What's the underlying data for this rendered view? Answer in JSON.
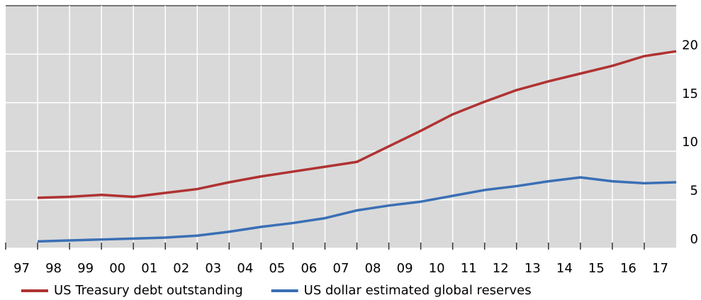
{
  "chart_data": {
    "type": "line",
    "categories": [
      "97",
      "98",
      "99",
      "00",
      "01",
      "02",
      "03",
      "04",
      "05",
      "06",
      "07",
      "08",
      "09",
      "10",
      "11",
      "12",
      "13",
      "14",
      "15",
      "16",
      "17"
    ],
    "series": [
      {
        "name": "US Treasury debt outstanding",
        "color": "#b03232",
        "values": [
          5.2,
          5.3,
          5.5,
          5.3,
          5.7,
          6.1,
          6.8,
          7.4,
          7.9,
          8.4,
          8.9,
          10.5,
          12.1,
          13.8,
          15.1,
          16.3,
          17.2,
          18.0,
          18.8,
          19.8,
          20.3
        ]
      },
      {
        "name": "US dollar estimated global reserves",
        "color": "#3a6fb5",
        "values": [
          0.7,
          0.8,
          0.9,
          1.0,
          1.1,
          1.3,
          1.7,
          2.2,
          2.6,
          3.1,
          3.9,
          4.4,
          4.8,
          5.4,
          6.0,
          6.4,
          6.9,
          7.3,
          6.9,
          6.7,
          6.8
        ]
      }
    ],
    "ylim": [
      0,
      25
    ],
    "yticks": [
      0,
      5,
      10,
      15,
      20
    ],
    "grid": true,
    "legend": "bottom"
  }
}
